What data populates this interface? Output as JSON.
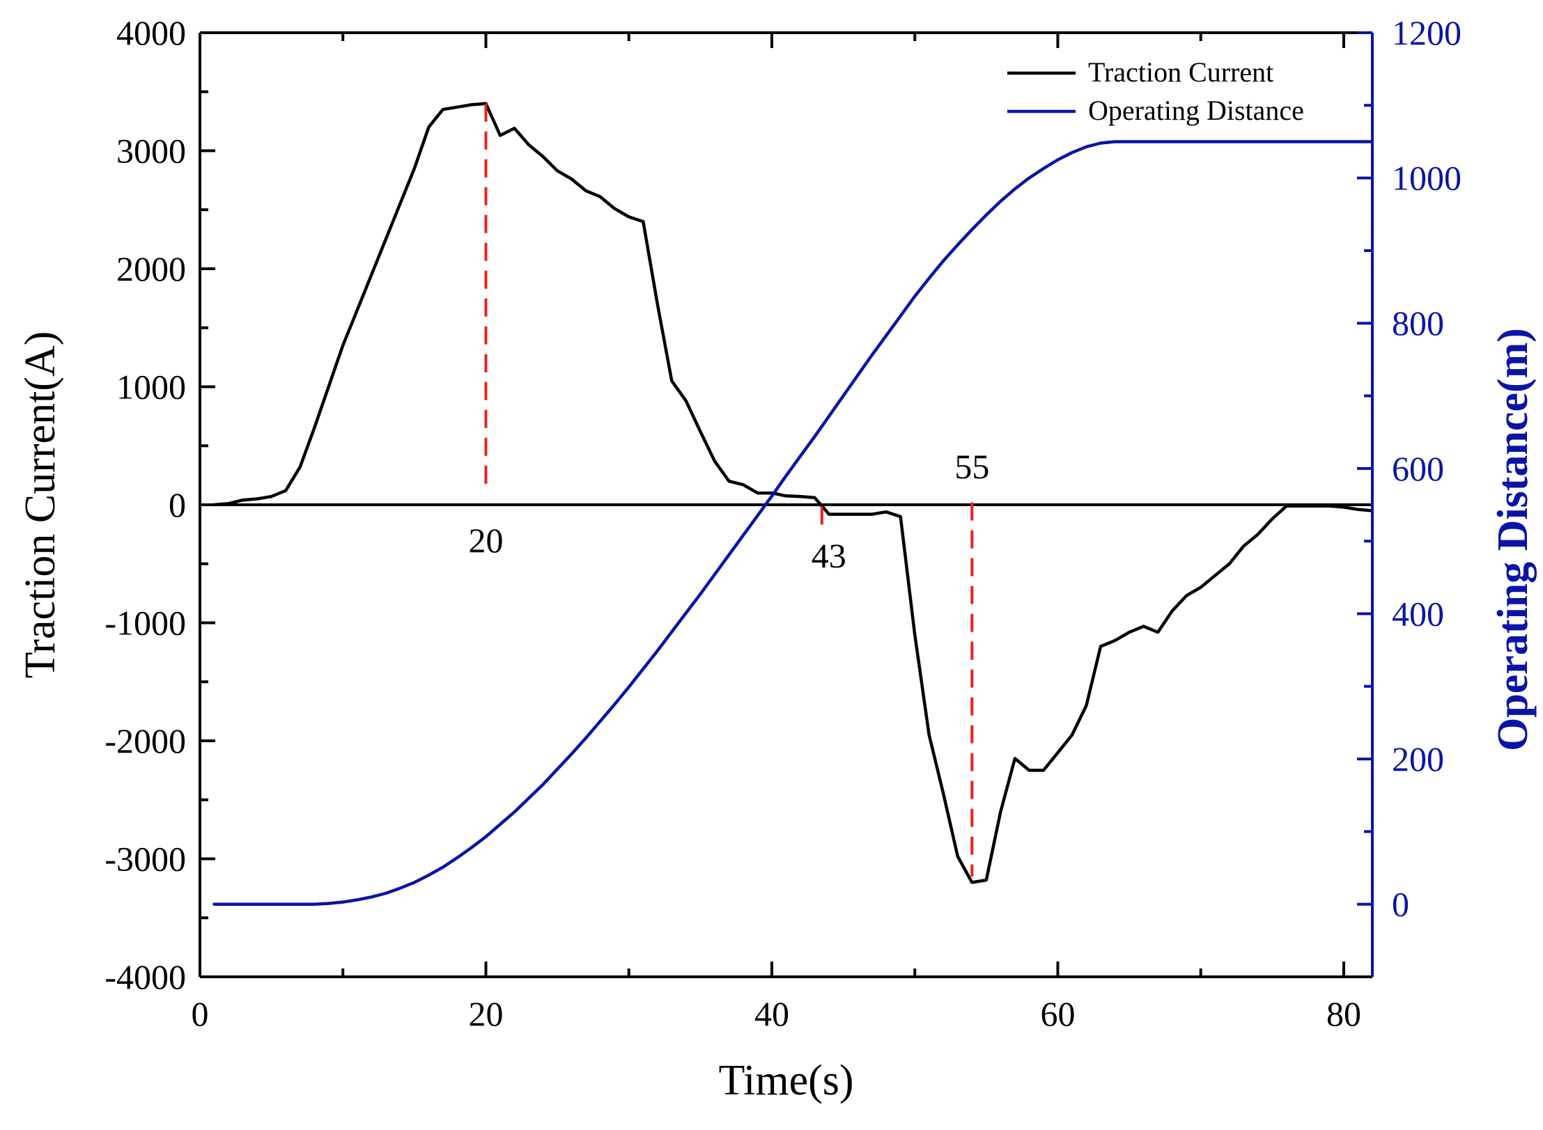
{
  "colors": {
    "current": "#000000",
    "distance": "#0a14a6",
    "marker": "#e8231e",
    "axis": "#000000"
  },
  "chart_data": {
    "type": "line",
    "title": "",
    "xlabel": "Time(s)",
    "ylabel_left": "Traction Current(A)",
    "ylabel_right": "Operating Distance(m)",
    "xlim": [
      0,
      82
    ],
    "ylim_left": [
      -4000,
      4000
    ],
    "ylim_right": [
      -100,
      1200
    ],
    "x_ticks": [
      0,
      20,
      40,
      60,
      80
    ],
    "x_ticks_minor": [
      10,
      30,
      50,
      70
    ],
    "y_left_ticks": [
      -4000,
      -3000,
      -2000,
      -1000,
      0,
      1000,
      2000,
      3000,
      4000
    ],
    "y_right_ticks": [
      0,
      200,
      400,
      600,
      800,
      1000,
      1200
    ],
    "x_tick_labels": [
      "0",
      "20",
      "40",
      "60",
      "80"
    ],
    "y_left_tick_labels": [
      "-4000",
      "-3000",
      "-2000",
      "-1000",
      "0",
      "1000",
      "2000",
      "3000",
      "4000"
    ],
    "y_right_tick_labels": [
      "0",
      "200",
      "400",
      "600",
      "800",
      "1000",
      "1200"
    ],
    "legend": {
      "position": "top-right",
      "entries": [
        "Traction Current",
        "Operating Distance"
      ]
    },
    "series": [
      {
        "name": "Traction Current",
        "axis": "left",
        "x": [
          1,
          2,
          3,
          4,
          5,
          6,
          7,
          8,
          9,
          10,
          11,
          12,
          13,
          14,
          15,
          16,
          17,
          18,
          19,
          20,
          21,
          22,
          23,
          24,
          25,
          26,
          27,
          28,
          29,
          30,
          31,
          32,
          33,
          34,
          35,
          36,
          37,
          38,
          39,
          40,
          41,
          42,
          43,
          44,
          45,
          46,
          47,
          48,
          49,
          50,
          51,
          52,
          53,
          54,
          55,
          56,
          57,
          58,
          59,
          60,
          61,
          62,
          63,
          64,
          65,
          66,
          67,
          68,
          69,
          70,
          71,
          72,
          73,
          74,
          75,
          76,
          77,
          78,
          79,
          80,
          81,
          82
        ],
        "values": [
          0,
          10,
          40,
          50,
          70,
          120,
          320,
          650,
          1000,
          1350,
          1650,
          1950,
          2250,
          2550,
          2850,
          3200,
          3350,
          3370,
          3390,
          3400,
          3130,
          3190,
          3050,
          2950,
          2830,
          2760,
          2660,
          2610,
          2510,
          2440,
          2400,
          1700,
          1050,
          880,
          620,
          370,
          200,
          170,
          100,
          100,
          75,
          70,
          60,
          -80,
          -80,
          -80,
          -80,
          -60,
          -100,
          -1100,
          -1950,
          -2450,
          -2980,
          -3200,
          -3180,
          -2600,
          -2150,
          -2250,
          -2250,
          -2100,
          -1950,
          -1700,
          -1200,
          -1150,
          -1080,
          -1030,
          -1080,
          -900,
          -770,
          -700,
          -600,
          -500,
          -350,
          -250,
          -120,
          -10,
          -10,
          -10,
          -10,
          -20,
          -40,
          -50
        ]
      },
      {
        "name": "Operating Distance",
        "axis": "right",
        "x": [
          1,
          2,
          3,
          4,
          5,
          6,
          7,
          8,
          9,
          10,
          11,
          12,
          13,
          14,
          15,
          16,
          17,
          18,
          19,
          20,
          21,
          22,
          23,
          24,
          25,
          26,
          27,
          28,
          29,
          30,
          31,
          32,
          33,
          34,
          35,
          36,
          37,
          38,
          39,
          40,
          41,
          42,
          43,
          44,
          45,
          46,
          47,
          48,
          49,
          50,
          51,
          52,
          53,
          54,
          55,
          56,
          57,
          58,
          59,
          60,
          61,
          62,
          63,
          64,
          65,
          66,
          67,
          68,
          69,
          70,
          71,
          72,
          73,
          74,
          75,
          76,
          77,
          78,
          79,
          80,
          81,
          82
        ],
        "values": [
          0,
          0,
          0,
          0,
          0,
          0,
          0,
          0,
          1,
          3,
          6,
          10,
          15,
          22,
          30,
          40,
          51,
          64,
          78,
          93,
          110,
          127,
          146,
          165,
          186,
          207,
          229,
          252,
          275,
          299,
          324,
          349,
          375,
          401,
          427,
          454,
          481,
          508,
          535,
          562,
          590,
          617,
          644,
          672,
          700,
          728,
          756,
          783,
          810,
          837,
          862,
          886,
          908,
          929,
          949,
          968,
          985,
          1000,
          1013,
          1025,
          1035,
          1043,
          1048,
          1050,
          1050,
          1050,
          1050,
          1050,
          1050,
          1050,
          1050,
          1050,
          1050,
          1050,
          1050,
          1050,
          1050,
          1050,
          1050,
          1050,
          1050,
          1050
        ]
      }
    ],
    "annotations": [
      {
        "label": "20",
        "x": 20,
        "y_top": 3400,
        "y_bottom": 100,
        "label_position": "below"
      },
      {
        "label": "43",
        "x": 43.5,
        "y_top": -15,
        "y_bottom": -200,
        "label_position": "below"
      },
      {
        "label": "55",
        "x": 54,
        "y_top": 20,
        "y_bottom": -3150,
        "label_position": "above"
      }
    ]
  }
}
